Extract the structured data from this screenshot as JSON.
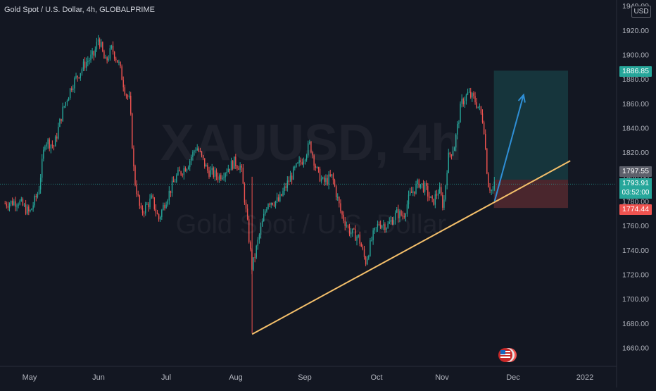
{
  "header": {
    "title": "Gold Spot / U.S. Dollar, 4h, GLOBALPRIME",
    "currency_button": "USD",
    "watermark_symbol": "XAUUSD, 4h",
    "watermark_name": "Gold Spot / U.S. Dollar"
  },
  "colors": {
    "background": "#131722",
    "bullish": "#26a69a",
    "bearish": "#ef5350",
    "trendline": "#f5c06b",
    "arrow": "#2f8fd6",
    "target_zone": "rgba(38,166,154,0.22)",
    "stop_zone": "rgba(239,83,80,0.25)"
  },
  "price_tags": {
    "target": "1886.85",
    "entry": "1797.55",
    "last_price": "1793.91",
    "countdown": "03:52:00",
    "stop": "1774.44"
  },
  "chart_data": {
    "type": "candlestick",
    "symbol": "XAUUSD",
    "title": "Gold Spot / U.S. Dollar, 4h, GLOBALPRIME",
    "x_ticks": [
      "May",
      "Jun",
      "Jul",
      "Aug",
      "Sep",
      "Oct",
      "Nov",
      "Dec",
      "2022"
    ],
    "y_ticks": [
      1660,
      1680,
      1700,
      1720,
      1740,
      1760,
      1780,
      1800,
      1820,
      1840,
      1860,
      1880,
      1900,
      1920,
      1940
    ],
    "ylim": [
      1645,
      1940
    ],
    "series": [
      {
        "values": [
          [
            "Apr 20",
            1778
          ],
          [
            "Apr 26",
            1780
          ],
          [
            "May 1",
            1770
          ],
          [
            "May 5",
            1788
          ],
          [
            "May 8",
            1830
          ],
          [
            "May 12",
            1825
          ],
          [
            "May 16",
            1855
          ],
          [
            "May 20",
            1875
          ],
          [
            "May 26",
            1893
          ],
          [
            "May 30",
            1900
          ],
          [
            "Jun 1",
            1914
          ],
          [
            "Jun 4",
            1893
          ],
          [
            "Jun 7",
            1905
          ],
          [
            "Jun 10",
            1893
          ],
          [
            "Jun 13",
            1870
          ],
          [
            "Jun 15",
            1862
          ],
          [
            "Jun 17",
            1800
          ],
          [
            "Jun 20",
            1770
          ],
          [
            "Jun 25",
            1782
          ],
          [
            "Jun 28",
            1765
          ],
          [
            "Jul 1",
            1780
          ],
          [
            "Jul 6",
            1800
          ],
          [
            "Jul 11",
            1810
          ],
          [
            "Jul 15",
            1825
          ],
          [
            "Jul 20",
            1805
          ],
          [
            "Jul 25",
            1800
          ],
          [
            "Aug 1",
            1812
          ],
          [
            "Aug 4",
            1808
          ],
          [
            "Aug 7",
            1760
          ],
          [
            "Aug 9",
            1725
          ],
          [
            "Aug 12",
            1750
          ],
          [
            "Aug 16",
            1780
          ],
          [
            "Aug 21",
            1780
          ],
          [
            "Aug 25",
            1795
          ],
          [
            "Aug 28",
            1805
          ],
          [
            "Sep 1",
            1815
          ],
          [
            "Sep 4",
            1827
          ],
          [
            "Sep 7",
            1805
          ],
          [
            "Sep 10",
            1795
          ],
          [
            "Sep 14",
            1800
          ],
          [
            "Sep 18",
            1770
          ],
          [
            "Sep 22",
            1755
          ],
          [
            "Sep 26",
            1750
          ],
          [
            "Sep 29",
            1730
          ],
          [
            "Oct 2",
            1750
          ],
          [
            "Oct 5",
            1762
          ],
          [
            "Oct 9",
            1760
          ],
          [
            "Oct 13",
            1770
          ],
          [
            "Oct 16",
            1768
          ],
          [
            "Oct 19",
            1785
          ],
          [
            "Oct 23",
            1795
          ],
          [
            "Oct 26",
            1790
          ],
          [
            "Oct 29",
            1778
          ],
          [
            "Nov 1",
            1790
          ],
          [
            "Nov 3",
            1775
          ],
          [
            "Nov 5",
            1815
          ],
          [
            "Nov 8",
            1826
          ],
          [
            "Nov 11",
            1860
          ],
          [
            "Nov 14",
            1868
          ],
          [
            "Nov 17",
            1863
          ],
          [
            "Nov 19",
            1856
          ],
          [
            "Nov 21",
            1845
          ],
          [
            "Nov 23",
            1795
          ],
          [
            "Nov 25",
            1787
          ],
          [
            "Nov 26",
            1793.91
          ]
        ]
      }
    ],
    "drawings": {
      "trendline": {
        "from": [
          "Aug 9",
          1671
        ],
        "to": [
          "Dec 30",
          1813
        ]
      },
      "long_position": {
        "start": "Nov 26",
        "end": "Dec 29",
        "target": 1886.85,
        "entry": 1797.55,
        "stop": 1774.44
      },
      "arrow": {
        "from": [
          "Nov 26",
          1780
        ],
        "to": [
          "Dec 9",
          1867
        ]
      }
    },
    "current_price": 1793.91,
    "grid": false,
    "legend": "none"
  }
}
